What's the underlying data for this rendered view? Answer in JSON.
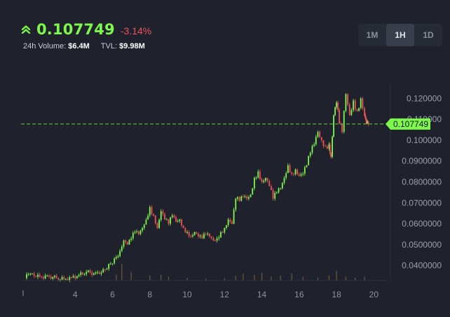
{
  "header": {
    "price": "0.107749",
    "change": "-3.14%",
    "volume_label": "24h Volume:",
    "volume_value": "$6.4M",
    "tvl_label": "TVL:",
    "tvl_value": "$9.98M",
    "up_icon": "double-chevron-up-icon"
  },
  "timeframes": [
    {
      "label": "1M",
      "active": false
    },
    {
      "label": "1H",
      "active": true
    },
    {
      "label": "1D",
      "active": false
    }
  ],
  "colors": {
    "up": "#7cf94a",
    "down": "#f0525a",
    "background": "#1f222c",
    "volume": "#6b5a3a",
    "last_price_line": "#5bbf3a"
  },
  "chart_data": {
    "type": "candlestick",
    "last_price": 0.107749,
    "last_price_label": "0.107749",
    "x_ticks": [
      "4",
      "6",
      "8",
      "10",
      "12",
      "14",
      "16",
      "18",
      "20"
    ],
    "x_range": [
      1.1,
      20.7
    ],
    "y_ticks": [
      "0.0400000",
      "0.0500000",
      "0.0600000",
      "0.0700000",
      "0.0800000",
      "0.0900000",
      "0.100000",
      "0.110000",
      "0.120000"
    ],
    "y_range": [
      0.0335,
      0.1275
    ],
    "grid": false,
    "series_close": [
      [
        1.3,
        0.034
      ],
      [
        1.5,
        0.036
      ],
      [
        1.8,
        0.035
      ],
      [
        2.2,
        0.0345
      ],
      [
        2.6,
        0.0348
      ],
      [
        3.0,
        0.034
      ],
      [
        3.4,
        0.0335
      ],
      [
        3.8,
        0.0342
      ],
      [
        4.2,
        0.0355
      ],
      [
        4.6,
        0.037
      ],
      [
        5.0,
        0.0362
      ],
      [
        5.3,
        0.036
      ],
      [
        5.6,
        0.038
      ],
      [
        5.9,
        0.041
      ],
      [
        6.2,
        0.044
      ],
      [
        6.4,
        0.047
      ],
      [
        6.6,
        0.052
      ],
      [
        6.8,
        0.05
      ],
      [
        7.0,
        0.053
      ],
      [
        7.2,
        0.056
      ],
      [
        7.4,
        0.055
      ],
      [
        7.6,
        0.058
      ],
      [
        7.8,
        0.062
      ],
      [
        8.0,
        0.068
      ],
      [
        8.2,
        0.064
      ],
      [
        8.4,
        0.058
      ],
      [
        8.6,
        0.066
      ],
      [
        8.8,
        0.062
      ],
      [
        9.0,
        0.06
      ],
      [
        9.2,
        0.064
      ],
      [
        9.4,
        0.061
      ],
      [
        9.6,
        0.062
      ],
      [
        9.8,
        0.058
      ],
      [
        10.0,
        0.056
      ],
      [
        10.2,
        0.054
      ],
      [
        10.4,
        0.056
      ],
      [
        10.6,
        0.054
      ],
      [
        10.8,
        0.053
      ],
      [
        11.0,
        0.055
      ],
      [
        11.2,
        0.054
      ],
      [
        11.4,
        0.052
      ],
      [
        11.6,
        0.053
      ],
      [
        11.8,
        0.056
      ],
      [
        12.0,
        0.058
      ],
      [
        12.2,
        0.062
      ],
      [
        12.4,
        0.06
      ],
      [
        12.6,
        0.072
      ],
      [
        12.8,
        0.071
      ],
      [
        13.0,
        0.073
      ],
      [
        13.2,
        0.072
      ],
      [
        13.4,
        0.074
      ],
      [
        13.6,
        0.082
      ],
      [
        13.8,
        0.085
      ],
      [
        14.0,
        0.08
      ],
      [
        14.2,
        0.082
      ],
      [
        14.4,
        0.078
      ],
      [
        14.6,
        0.072
      ],
      [
        14.8,
        0.075
      ],
      [
        15.0,
        0.077
      ],
      [
        15.2,
        0.082
      ],
      [
        15.4,
        0.088
      ],
      [
        15.6,
        0.084
      ],
      [
        15.8,
        0.086
      ],
      [
        16.0,
        0.083
      ],
      [
        16.2,
        0.084
      ],
      [
        16.4,
        0.088
      ],
      [
        16.6,
        0.094
      ],
      [
        16.8,
        0.098
      ],
      [
        17.0,
        0.104
      ],
      [
        17.2,
        0.1
      ],
      [
        17.4,
        0.097
      ],
      [
        17.6,
        0.098
      ],
      [
        17.7,
        0.092
      ],
      [
        17.85,
        0.112
      ],
      [
        18.0,
        0.118
      ],
      [
        18.15,
        0.108
      ],
      [
        18.3,
        0.104
      ],
      [
        18.5,
        0.122
      ],
      [
        18.7,
        0.112
      ],
      [
        18.9,
        0.119
      ],
      [
        19.1,
        0.114
      ],
      [
        19.3,
        0.12
      ],
      [
        19.5,
        0.112
      ],
      [
        19.6,
        0.108
      ],
      [
        19.7,
        0.1077
      ]
    ],
    "volume": [
      [
        1.5,
        0.02
      ],
      [
        2.5,
        0.01
      ],
      [
        4.5,
        0.03
      ],
      [
        5.5,
        0.02
      ],
      [
        6.2,
        0.3
      ],
      [
        6.5,
        0.85
      ],
      [
        7.0,
        0.45
      ],
      [
        8.0,
        0.25
      ],
      [
        8.6,
        0.3
      ],
      [
        9.0,
        0.2
      ],
      [
        10.0,
        0.15
      ],
      [
        11.0,
        0.1
      ],
      [
        12.0,
        0.12
      ],
      [
        12.6,
        0.25
      ],
      [
        13.0,
        0.35
      ],
      [
        13.6,
        0.3
      ],
      [
        14.0,
        0.4
      ],
      [
        14.5,
        0.2
      ],
      [
        15.0,
        0.25
      ],
      [
        15.6,
        0.35
      ],
      [
        16.2,
        0.2
      ],
      [
        17.0,
        0.15
      ],
      [
        17.6,
        0.25
      ],
      [
        18.0,
        0.5
      ],
      [
        18.5,
        0.2
      ],
      [
        19.0,
        0.15
      ],
      [
        19.5,
        0.2
      ]
    ]
  }
}
